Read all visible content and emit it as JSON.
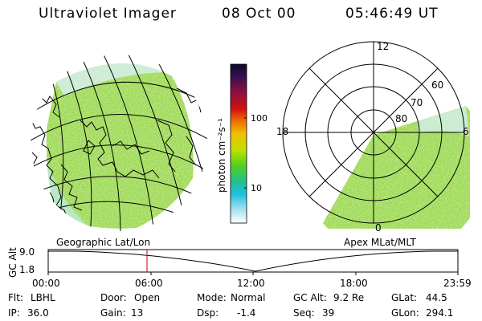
{
  "header": {
    "instrument": "Ultraviolet Imager",
    "date": "08 Oct 00",
    "time": "05:46:49 UT"
  },
  "colorbar": {
    "unit_label": "photon cm⁻²s⁻¹",
    "tick_labels": [
      "100",
      "10"
    ],
    "colors": [
      "#0a0a2a",
      "#3a1050",
      "#901040",
      "#d01010",
      "#f07000",
      "#f0c000",
      "#c0e000",
      "#50d020",
      "#20c090",
      "#20c0e0",
      "#a0e0f0",
      "#ffffff"
    ]
  },
  "left_map": {
    "caption": "Geographic Lat/Lon"
  },
  "right_map": {
    "caption": "Apex MLat/MLT",
    "mlt_labels": {
      "top": "12",
      "left": "18",
      "right": "6",
      "bottom": "0"
    },
    "lat_labels": [
      "60",
      "70",
      "80"
    ]
  },
  "altitude_plot": {
    "ylabel": "GC Alt",
    "yticks": [
      "9.0",
      "1.8"
    ],
    "xticks": [
      "00:00",
      "06:00",
      "12:00",
      "18:00",
      "23:59"
    ]
  },
  "info": {
    "filter_label": "Flt:",
    "filter_value": "LBHL",
    "ip_label": "IP:",
    "ip_value": "36.0",
    "door_label": "Door:",
    "door_value": "Open",
    "gain_label": "Gain:",
    "gain_value": "13",
    "mode_label": "Mode:",
    "mode_value": "Normal",
    "dsp_label": "Dsp:",
    "dsp_value": "-1.4",
    "gcalt_label": "GC Alt:",
    "gcalt_value": "9.2 Re",
    "seq_label": "Seq:",
    "seq_value": "39",
    "glat_label": "GLat:",
    "glat_value": "44.5",
    "glon_label": "GLon:",
    "glon_value": "294.1"
  }
}
